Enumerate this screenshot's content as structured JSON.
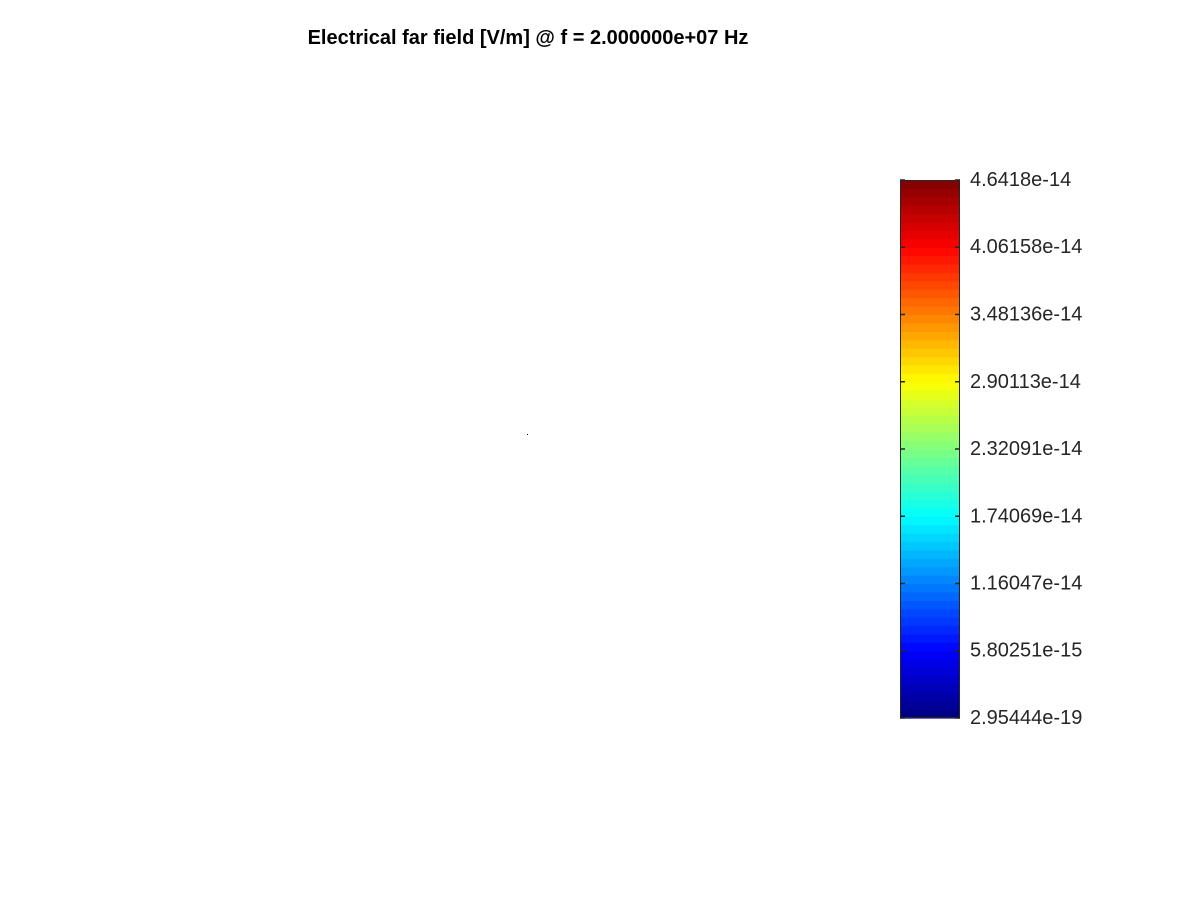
{
  "chart_data": {
    "type": "heatmap",
    "title": "Electrical far field [V/m] @ f = 2.000000e+07 Hz",
    "xlabel": "",
    "ylabel": "",
    "grid": false,
    "colormap": "jet",
    "colormap_stops": [
      "#00007f",
      "#0000ff",
      "#007fff",
      "#00ffff",
      "#7fff7f",
      "#ffff00",
      "#ff7f00",
      "#ff0000",
      "#7f0000"
    ],
    "colorbar": {
      "placement": "right",
      "min": 2.95444e-19,
      "max": 4.6418e-14,
      "levels": 64,
      "tick_values": [
        2.95444e-19,
        5.80251e-15,
        1.16047e-14,
        1.74069e-14,
        2.32091e-14,
        2.90113e-14,
        3.48136e-14,
        4.06158e-14,
        4.6418e-14
      ],
      "tick_labels": [
        "2.95444e-19",
        "5.80251e-15",
        "1.16047e-14",
        "1.74069e-14",
        "2.32091e-14",
        "2.90113e-14",
        "3.48136e-14",
        "4.06158e-14",
        "4.6418e-14"
      ]
    },
    "points": [
      {
        "x": 0,
        "y": 0,
        "value": 2.95444e-19
      }
    ]
  }
}
